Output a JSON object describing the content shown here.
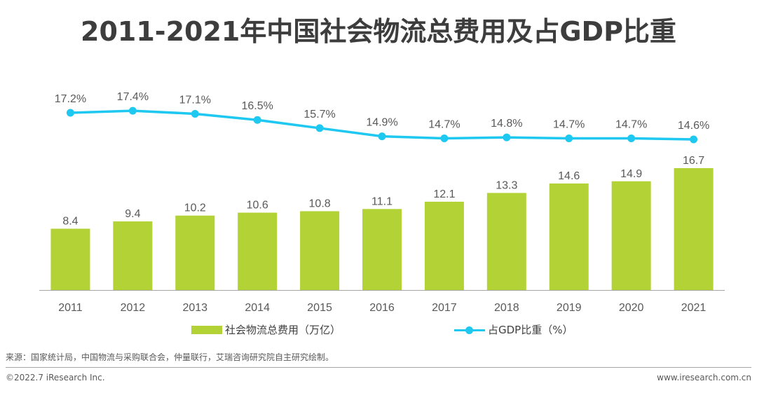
{
  "title": "2011-2021年中国社会物流总费用及占GDP比重",
  "legend": {
    "bar_label": "社会物流总费用（万亿）",
    "line_label": "占GDP比重（%）"
  },
  "colors": {
    "bar": "#b2d235",
    "line": "#1ec8f0",
    "text": "#595959",
    "axis": "#a6a6a6"
  },
  "footer": {
    "source": "来源：国家统计局，中国物流与采购联合会，仲量联行，艾瑞咨询研究院自主研究绘制。",
    "copyright": "©2022.7 iResearch Inc.",
    "website": "www.iresearch.com.cn"
  },
  "chart_data": {
    "type": "bar+line",
    "title": "2011-2021年中国社会物流总费用及占GDP比重",
    "categories": [
      "2011",
      "2012",
      "2013",
      "2014",
      "2015",
      "2016",
      "2017",
      "2018",
      "2019",
      "2020",
      "2021"
    ],
    "series": [
      {
        "name": "社会物流总费用（万亿）",
        "type": "bar",
        "values": [
          8.4,
          9.4,
          10.2,
          10.6,
          10.8,
          11.1,
          12.1,
          13.3,
          14.6,
          14.9,
          16.7
        ],
        "labels": [
          "8.4",
          "9.4",
          "10.2",
          "10.6",
          "10.8",
          "11.1",
          "12.1",
          "13.3",
          "14.6",
          "14.9",
          "16.7"
        ]
      },
      {
        "name": "占GDP比重（%）",
        "type": "line",
        "values": [
          17.2,
          17.4,
          17.1,
          16.5,
          15.7,
          14.9,
          14.7,
          14.8,
          14.7,
          14.7,
          14.6
        ],
        "labels": [
          "17.2%",
          "17.4%",
          "17.1%",
          "16.5%",
          "15.7%",
          "14.9%",
          "14.7%",
          "14.8%",
          "14.7%",
          "14.7%",
          "14.6%"
        ]
      }
    ],
    "xlabel": "",
    "ylabel": "",
    "bar_ylim": [
      0,
      18
    ],
    "line_ylim": [
      10,
      18
    ],
    "grid": false,
    "legend_position": "bottom"
  }
}
